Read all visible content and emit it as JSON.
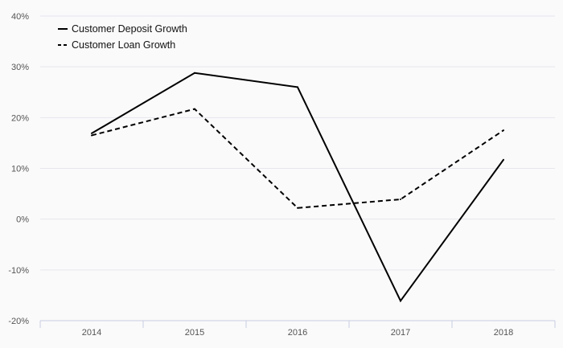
{
  "chart_data": {
    "type": "line",
    "categories": [
      "2014",
      "2015",
      "2016",
      "2017",
      "2018"
    ],
    "series": [
      {
        "name": "Customer Deposit Growth",
        "values": [
          16.9,
          28.8,
          26.0,
          -16.1,
          11.7
        ],
        "style": "solid",
        "color": "#000000"
      },
      {
        "name": "Customer Loan Growth",
        "values": [
          16.5,
          21.7,
          2.2,
          3.9,
          17.5
        ],
        "style": "dashed",
        "color": "#000000"
      }
    ],
    "ylim": [
      -20,
      40
    ],
    "yticks": [
      {
        "value": 40,
        "label": "40%"
      },
      {
        "value": 30,
        "label": "30%"
      },
      {
        "value": 20,
        "label": "20%"
      },
      {
        "value": 10,
        "label": "10%"
      },
      {
        "value": 0,
        "label": "0%"
      },
      {
        "value": -10,
        "label": "-10%"
      },
      {
        "value": -20,
        "label": "-20%"
      }
    ],
    "title": "",
    "xlabel": "",
    "ylabel": "",
    "grid": "horizontal",
    "legend_position": "top-left",
    "colors": {
      "background": "#fafafb",
      "gridline": "#e6e6ec",
      "axis": "#c8cde0",
      "text": "#555555"
    }
  }
}
